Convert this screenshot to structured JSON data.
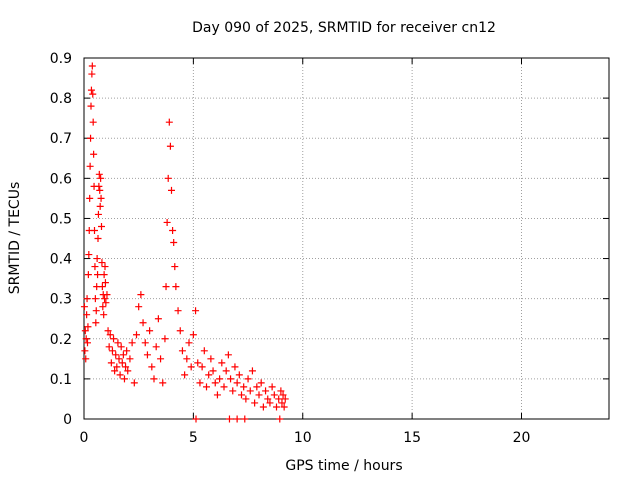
{
  "chart_data": {
    "type": "scatter",
    "title": "Day 090 of 2025, SRMTID for receiver cn12",
    "xlabel": "GPS time / hours",
    "ylabel": "SRMTID / TECUs",
    "xlim": [
      0,
      24
    ],
    "ylim": [
      0,
      0.9
    ],
    "xticks": [
      0,
      5,
      10,
      15,
      20
    ],
    "yticks": [
      0,
      0.1,
      0.2,
      0.3,
      0.4,
      0.5,
      0.6,
      0.7,
      0.8,
      0.9
    ],
    "xtick_labels": [
      "0",
      "5",
      "10",
      "15",
      "20"
    ],
    "ytick_labels": [
      "0",
      "0.1",
      "0.2",
      "0.3",
      "0.4",
      "0.5",
      "0.6",
      "0.7",
      "0.8",
      "0.9"
    ],
    "grid": true,
    "marker": "+",
    "color": "#ff0000",
    "series": [
      {
        "name": "cn12",
        "x": [
          0.02,
          0.04,
          0.06,
          0.08,
          0.1,
          0.12,
          0.14,
          0.16,
          0.18,
          0.2,
          0.22,
          0.24,
          0.26,
          0.28,
          0.3,
          0.32,
          0.34,
          0.36,
          0.38,
          0.4,
          0.42,
          0.44,
          0.46,
          0.48,
          0.5,
          0.52,
          0.54,
          0.56,
          0.58,
          0.6,
          0.62,
          0.64,
          0.66,
          0.68,
          0.7,
          0.72,
          0.74,
          0.76,
          0.78,
          0.8,
          0.82,
          0.84,
          0.86,
          0.88,
          0.9,
          0.92,
          0.94,
          0.96,
          0.98,
          1.0,
          1.05,
          1.1,
          1.15,
          1.2,
          1.25,
          1.3,
          1.35,
          1.4,
          1.45,
          1.5,
          1.55,
          1.6,
          1.65,
          1.7,
          1.75,
          1.8,
          1.85,
          1.9,
          1.95,
          2.0,
          2.1,
          2.2,
          2.3,
          2.4,
          2.5,
          2.6,
          2.7,
          2.8,
          2.9,
          3.0,
          3.1,
          3.2,
          3.3,
          3.4,
          3.5,
          3.6,
          3.7,
          3.75,
          3.8,
          3.85,
          3.9,
          3.95,
          4.0,
          4.05,
          4.1,
          4.15,
          4.2,
          4.3,
          4.4,
          4.5,
          4.6,
          4.7,
          4.8,
          4.9,
          5.0,
          5.1,
          5.2,
          5.3,
          5.4,
          5.5,
          5.6,
          5.7,
          5.8,
          5.9,
          6.0,
          6.1,
          6.2,
          6.3,
          6.4,
          6.5,
          6.6,
          6.7,
          6.8,
          6.9,
          7.0,
          7.1,
          7.2,
          7.3,
          7.4,
          7.5,
          7.6,
          7.7,
          7.8,
          7.9,
          8.0,
          8.1,
          8.2,
          8.3,
          8.4,
          8.5,
          8.6,
          8.7,
          8.8,
          8.9,
          9.0,
          9.05,
          9.1,
          9.15,
          9.2,
          5.12,
          6.65,
          7.0,
          7.35,
          8.95
        ],
        "y": [
          0.28,
          0.17,
          0.22,
          0.15,
          0.2,
          0.26,
          0.3,
          0.19,
          0.23,
          0.36,
          0.41,
          0.47,
          0.55,
          0.63,
          0.7,
          0.78,
          0.82,
          0.86,
          0.88,
          0.81,
          0.74,
          0.66,
          0.58,
          0.47,
          0.38,
          0.3,
          0.24,
          0.27,
          0.33,
          0.4,
          0.36,
          0.45,
          0.51,
          0.58,
          0.61,
          0.57,
          0.53,
          0.6,
          0.55,
          0.48,
          0.39,
          0.33,
          0.28,
          0.31,
          0.26,
          0.36,
          0.3,
          0.38,
          0.34,
          0.29,
          0.31,
          0.22,
          0.18,
          0.21,
          0.14,
          0.17,
          0.2,
          0.12,
          0.16,
          0.13,
          0.19,
          0.15,
          0.11,
          0.18,
          0.14,
          0.16,
          0.1,
          0.13,
          0.17,
          0.12,
          0.15,
          0.19,
          0.09,
          0.21,
          0.28,
          0.31,
          0.24,
          0.19,
          0.16,
          0.22,
          0.13,
          0.1,
          0.18,
          0.25,
          0.15,
          0.09,
          0.2,
          0.33,
          0.49,
          0.6,
          0.74,
          0.68,
          0.57,
          0.47,
          0.44,
          0.38,
          0.33,
          0.27,
          0.22,
          0.17,
          0.11,
          0.15,
          0.19,
          0.13,
          0.21,
          0.27,
          0.14,
          0.09,
          0.13,
          0.17,
          0.08,
          0.11,
          0.15,
          0.12,
          0.09,
          0.06,
          0.1,
          0.14,
          0.08,
          0.12,
          0.16,
          0.1,
          0.07,
          0.13,
          0.09,
          0.11,
          0.06,
          0.08,
          0.05,
          0.1,
          0.07,
          0.12,
          0.04,
          0.08,
          0.06,
          0.09,
          0.03,
          0.07,
          0.05,
          0.04,
          0.08,
          0.06,
          0.03,
          0.05,
          0.07,
          0.04,
          0.06,
          0.03,
          0.05,
          0.0,
          0.0,
          0.0,
          0.0,
          0.0
        ]
      }
    ]
  }
}
